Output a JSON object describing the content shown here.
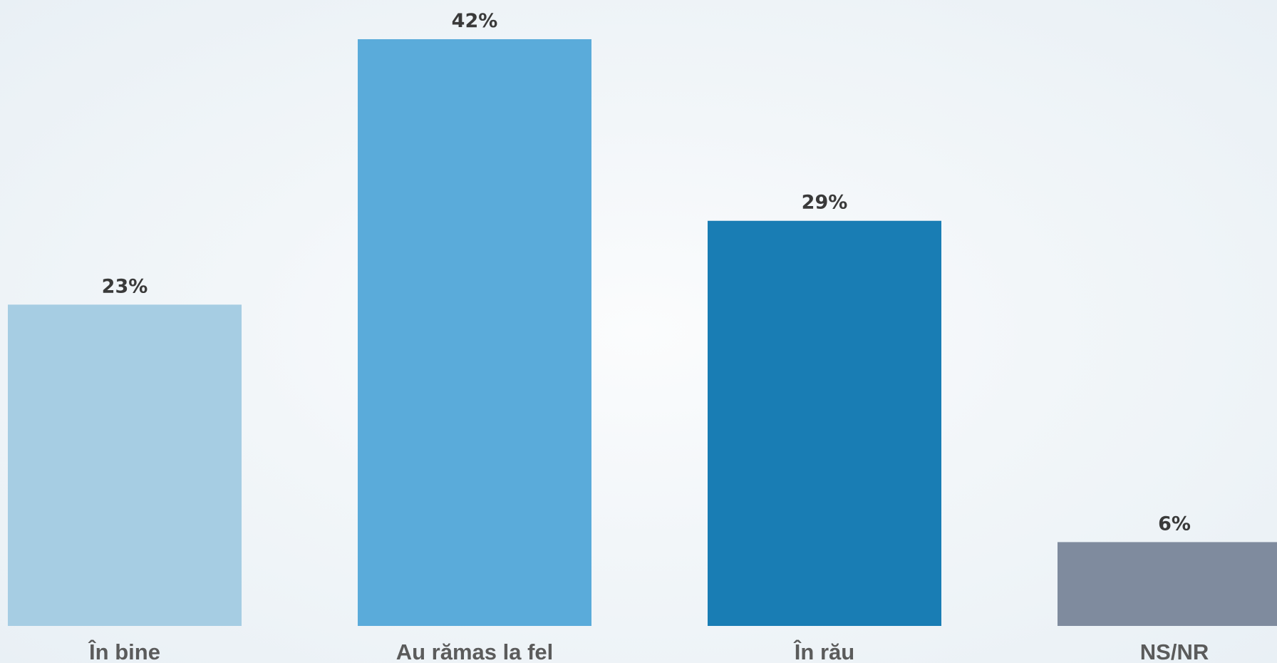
{
  "chart_data": {
    "type": "bar",
    "categories": [
      "În bine",
      "Au rămas la fel",
      "În rău",
      "NS/NR"
    ],
    "values": [
      23,
      42,
      29,
      6
    ],
    "value_labels": [
      "23%",
      "42%",
      "29%",
      "6%"
    ],
    "unit": "%",
    "title": "",
    "xlabel": "",
    "ylabel": "",
    "ylim": [
      0,
      42
    ],
    "grid": false,
    "legend": "none",
    "colors": [
      "#a6cde3",
      "#5aabda",
      "#197db4",
      "#7f8b9e"
    ]
  }
}
